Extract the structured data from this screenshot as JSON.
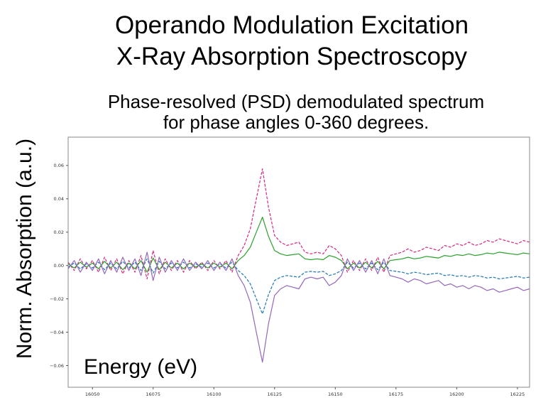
{
  "title": {
    "line1": "Operando Modulation Excitation",
    "line2": "X-Ray Absorption Spectroscopy"
  },
  "subtitle": {
    "line1": "Phase-resolved (PSD) demodulated spectrum",
    "line2": "for  phase angles 0-360 degrees."
  },
  "chart_data": {
    "type": "line",
    "title": "",
    "xlabel": "Energy (eV)",
    "ylabel": "Norm. Absorption (a.u.)",
    "xlim": [
      16040,
      16230
    ],
    "ylim": [
      -0.073,
      0.077
    ],
    "xticks": [
      16050,
      16075,
      16100,
      16125,
      16150,
      16175,
      16200,
      16225
    ],
    "yticks": [
      -0.06,
      -0.04,
      -0.02,
      0.0,
      0.02,
      0.04,
      0.06
    ],
    "ytick_labels": [
      "−0.06",
      "−0.04",
      "−0.02",
      "0.00",
      "0.02",
      "0.04",
      "0.06"
    ],
    "grid": false,
    "legend": "none",
    "x": [
      16040,
      16042.5,
      16045,
      16047.5,
      16050,
      16052.5,
      16055,
      16057.5,
      16060,
      16062.5,
      16065,
      16067.5,
      16070,
      16072.5,
      16075,
      16077.5,
      16080,
      16082.5,
      16085,
      16087.5,
      16090,
      16092.5,
      16095,
      16097.5,
      16100,
      16102.5,
      16105,
      16107.5,
      16110,
      16112.5,
      16115,
      16117.5,
      16120,
      16122.5,
      16125,
      16127.5,
      16130,
      16132.5,
      16135,
      16137.5,
      16140,
      16142.5,
      16145,
      16147.5,
      16150,
      16152.5,
      16155,
      16157.5,
      16160,
      16162.5,
      16165,
      16167.5,
      16170,
      16172.5,
      16175,
      16177.5,
      16180,
      16182.5,
      16185,
      16187.5,
      16190,
      16192.5,
      16195,
      16197.5,
      16200,
      16202.5,
      16205,
      16207.5,
      16210,
      16212.5,
      16215,
      16217.5,
      16220,
      16222.5,
      16225,
      16227.5,
      16230
    ],
    "series": [
      {
        "color": "#d62780",
        "dash": "4,2",
        "values": [
          0.002,
          -0.003,
          0.004,
          -0.002,
          0.003,
          -0.004,
          0.005,
          -0.003,
          0.004,
          -0.005,
          0.003,
          -0.004,
          0.006,
          -0.008,
          0.009,
          -0.005,
          0.004,
          -0.003,
          0.003,
          -0.004,
          0.003,
          -0.002,
          0.002,
          -0.003,
          0.003,
          -0.002,
          0.003,
          -0.004,
          0.006,
          0.012,
          0.022,
          0.04,
          0.058,
          0.035,
          0.018,
          0.014,
          0.012,
          0.013,
          0.014,
          0.008,
          0.007,
          0.008,
          0.007,
          0.012,
          0.01,
          0.006,
          -0.004,
          0.003,
          -0.003,
          0.004,
          -0.003,
          0.005,
          -0.004,
          0.006,
          0.007,
          0.008,
          0.01,
          0.008,
          0.009,
          0.011,
          0.01,
          0.009,
          0.012,
          0.011,
          0.013,
          0.012,
          0.014,
          0.012,
          0.013,
          0.015,
          0.014,
          0.016,
          0.015,
          0.014,
          0.013,
          0.015,
          0.014
        ]
      },
      {
        "color": "#2ca02c",
        "dash": "",
        "values": [
          0.001,
          -0.0015,
          0.002,
          -0.001,
          0.0015,
          -0.002,
          0.0025,
          -0.0015,
          0.002,
          -0.0025,
          0.0015,
          -0.002,
          0.003,
          -0.004,
          0.0045,
          -0.0025,
          0.002,
          -0.0015,
          0.0015,
          -0.002,
          0.0015,
          -0.001,
          0.001,
          -0.0015,
          0.0015,
          -0.001,
          0.0015,
          -0.002,
          0.003,
          0.006,
          0.011,
          0.02,
          0.029,
          0.0175,
          0.009,
          0.007,
          0.006,
          0.0065,
          0.007,
          0.004,
          0.0035,
          0.004,
          0.0035,
          0.006,
          0.005,
          0.003,
          -0.002,
          0.0015,
          -0.0015,
          0.002,
          -0.0015,
          0.0025,
          -0.002,
          0.003,
          0.0035,
          0.004,
          0.005,
          0.004,
          0.0045,
          0.0055,
          0.005,
          0.0045,
          0.006,
          0.0055,
          0.0065,
          0.006,
          0.007,
          0.006,
          0.0065,
          0.0075,
          0.007,
          0.008,
          0.0075,
          0.007,
          0.0065,
          0.0075,
          0.007
        ]
      },
      {
        "color": "#1f77b4",
        "dash": "4,2",
        "values": [
          -0.001,
          0.0015,
          -0.002,
          0.001,
          -0.0015,
          0.002,
          -0.0025,
          0.0015,
          -0.002,
          0.0025,
          -0.0015,
          0.002,
          -0.003,
          0.004,
          -0.0045,
          0.0025,
          -0.002,
          0.0015,
          -0.0015,
          0.002,
          -0.0015,
          0.001,
          -0.001,
          0.0015,
          -0.0015,
          0.001,
          -0.0015,
          0.002,
          -0.003,
          -0.006,
          -0.011,
          -0.02,
          -0.029,
          -0.0175,
          -0.009,
          -0.007,
          -0.006,
          -0.0065,
          -0.007,
          -0.004,
          -0.0035,
          -0.004,
          -0.0035,
          -0.006,
          -0.005,
          -0.003,
          0.002,
          -0.0015,
          0.0015,
          -0.002,
          0.0015,
          -0.0025,
          0.002,
          -0.003,
          -0.0035,
          -0.004,
          -0.005,
          -0.004,
          -0.0045,
          -0.0055,
          -0.005,
          -0.0045,
          -0.006,
          -0.0055,
          -0.0065,
          -0.006,
          -0.007,
          -0.006,
          -0.0065,
          -0.0075,
          -0.007,
          -0.008,
          -0.0075,
          -0.007,
          -0.0065,
          -0.0075,
          -0.007
        ]
      },
      {
        "color": "#9467bd",
        "dash": "",
        "values": [
          -0.002,
          0.003,
          -0.004,
          0.002,
          -0.003,
          0.004,
          -0.005,
          0.003,
          -0.004,
          0.005,
          -0.003,
          0.004,
          -0.006,
          0.008,
          -0.009,
          0.005,
          -0.004,
          0.003,
          -0.003,
          0.004,
          -0.003,
          0.002,
          -0.002,
          0.003,
          -0.003,
          0.002,
          -0.003,
          0.004,
          -0.006,
          -0.012,
          -0.022,
          -0.04,
          -0.058,
          -0.035,
          -0.018,
          -0.014,
          -0.012,
          -0.013,
          -0.014,
          -0.008,
          -0.007,
          -0.008,
          -0.007,
          -0.012,
          -0.01,
          -0.006,
          0.004,
          -0.003,
          0.003,
          -0.004,
          0.003,
          -0.005,
          0.004,
          -0.006,
          -0.007,
          -0.008,
          -0.01,
          -0.008,
          -0.009,
          -0.011,
          -0.01,
          -0.009,
          -0.012,
          -0.011,
          -0.013,
          -0.012,
          -0.014,
          -0.012,
          -0.013,
          -0.015,
          -0.014,
          -0.016,
          -0.015,
          -0.014,
          -0.013,
          -0.015,
          -0.014
        ]
      }
    ]
  }
}
